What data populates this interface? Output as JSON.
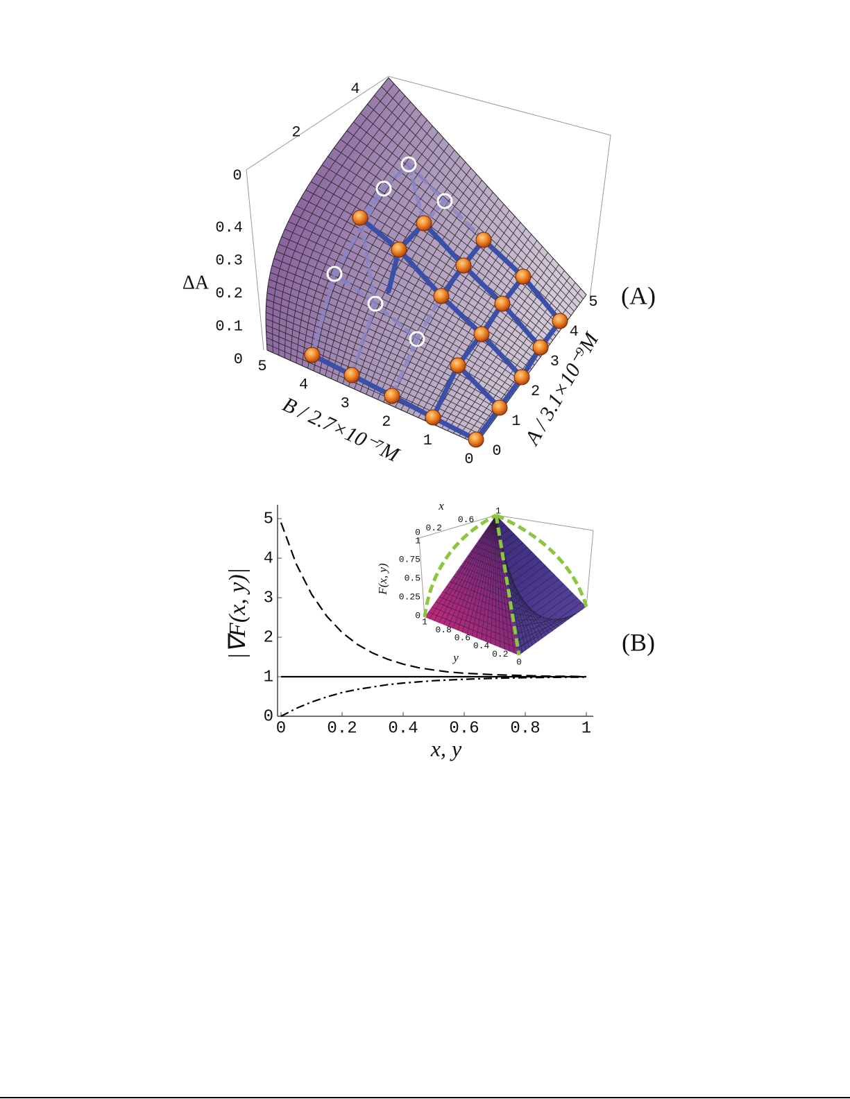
{
  "chart_data": [
    {
      "type": "surface",
      "panel_label": "(A)",
      "zlabel": "ΔA",
      "xlabel": "B / 2.7×10⁻⁷M",
      "ylabel": "A / 3.1×10⁻⁹M",
      "xlim": [
        0,
        5
      ],
      "xticks": [
        0,
        1,
        2,
        3,
        4,
        5
      ],
      "ylim": [
        0,
        5
      ],
      "yticks": [
        0,
        1,
        2,
        3,
        4,
        5
      ],
      "zlim": [
        0,
        0.4
      ],
      "zticks": [
        0,
        0.1,
        0.2,
        0.3,
        0.4
      ],
      "z2lim": [
        0,
        4
      ],
      "z2ticks": [
        0,
        2,
        4
      ]
    },
    {
      "type": "line",
      "panel_label": "(B)",
      "xlabel": "x, y",
      "ylabel": "|∇F(x, y)|",
      "x": [
        0,
        0.05,
        0.1,
        0.15,
        0.2,
        0.25,
        0.3,
        0.35,
        0.4,
        0.45,
        0.5,
        0.55,
        0.6,
        0.65,
        0.7,
        0.75,
        0.8,
        0.85,
        0.9,
        0.95,
        1
      ],
      "series": [
        {
          "color": "#000000",
          "dash": "dashed",
          "values": [
            4.9,
            3.85,
            3.09,
            2.53,
            2.12,
            1.82,
            1.6,
            1.44,
            1.32,
            1.23,
            1.17,
            1.12,
            1.09,
            1.07,
            1.05,
            1.04,
            1.03,
            1.02,
            1.01,
            1.01,
            1.0
          ]
        },
        {
          "color": "#000000",
          "dash": "solid",
          "values": [
            1,
            1,
            1,
            1,
            1,
            1,
            1,
            1,
            1,
            1,
            1,
            1,
            1,
            1,
            1,
            1,
            1,
            1,
            1,
            1,
            1
          ]
        },
        {
          "color": "#000000",
          "dash": "dashdot",
          "values": [
            0,
            0.2,
            0.36,
            0.49,
            0.6,
            0.68,
            0.74,
            0.8,
            0.84,
            0.87,
            0.9,
            0.92,
            0.935,
            0.95,
            0.96,
            0.97,
            0.975,
            0.98,
            0.985,
            0.99,
            0.99
          ]
        }
      ],
      "xlim": [
        0,
        1
      ],
      "xticks": [
        0,
        0.2,
        0.4,
        0.6,
        0.8,
        1
      ],
      "ylim": [
        0,
        5
      ],
      "yticks": [
        0,
        1,
        2,
        3,
        4,
        5
      ]
    },
    {
      "type": "surface",
      "xlabel": "x",
      "ylabel": "y",
      "zlabel": "F(x, y)",
      "xlim": [
        0,
        1
      ],
      "xticks": [
        0,
        0.2,
        0.6,
        1
      ],
      "ylim": [
        0,
        1
      ],
      "yticks": [
        0,
        0.2,
        0.4,
        0.6,
        0.8,
        1
      ],
      "zlim": [
        0,
        1
      ],
      "zticks": [
        0,
        0.25,
        0.5,
        0.75,
        1
      ]
    }
  ]
}
